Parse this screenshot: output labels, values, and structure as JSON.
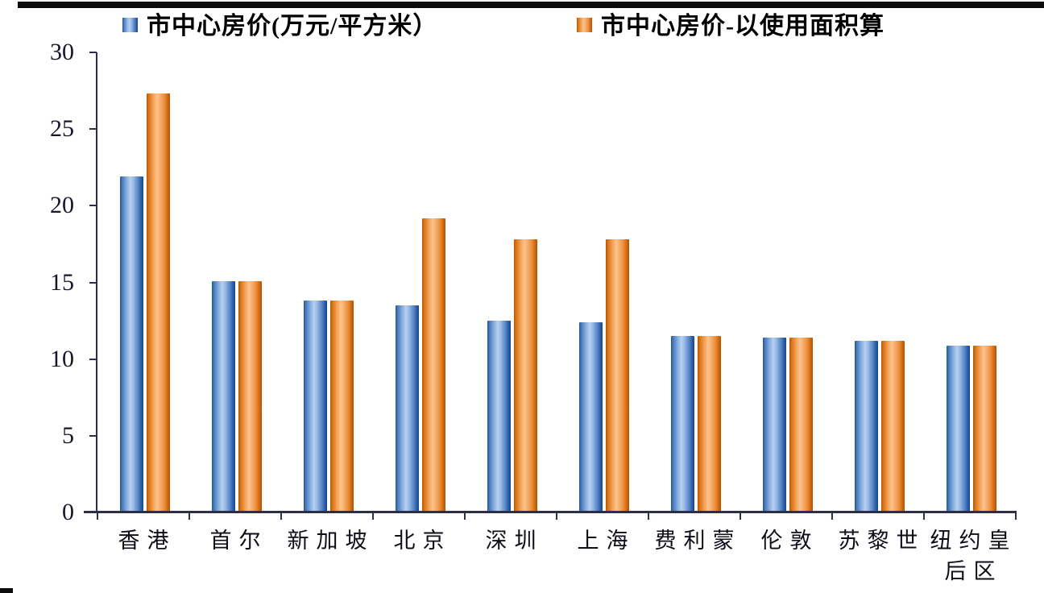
{
  "frame": {
    "top_bar_color": "#0b0b0b",
    "background": "#ffffff"
  },
  "legend": {
    "items": [
      {
        "label": "市中心房价(万元/平方米）",
        "swatch": "blue-gradient",
        "color": "#3a6db4"
      },
      {
        "label": "市中心房价-以使用面积算",
        "swatch": "orange-gradient",
        "color": "#e8872f"
      }
    ]
  },
  "chart_data": {
    "type": "bar",
    "title": "",
    "xlabel": "",
    "ylabel": "",
    "categories": [
      "香港",
      "首尔",
      "新加坡",
      "北京",
      "深圳",
      "上海",
      "费利蒙",
      "伦敦",
      "苏黎世",
      "纽约皇后区"
    ],
    "series": [
      {
        "name": "市中心房价(万元/平方米）",
        "color": "#3a6db4",
        "values": [
          21.9,
          15.1,
          13.8,
          13.5,
          12.5,
          12.4,
          11.5,
          11.4,
          11.2,
          10.9
        ]
      },
      {
        "name": "市中心房价-以使用面积算",
        "color": "#e8872f",
        "values": [
          27.3,
          15.1,
          13.8,
          19.2,
          17.8,
          17.8,
          11.5,
          11.4,
          11.2,
          10.9
        ]
      }
    ],
    "ylim": [
      0,
      30
    ],
    "yticks": [
      0,
      5,
      10,
      15,
      20,
      25,
      30
    ],
    "grid": false,
    "legend_position": "top",
    "axis_color": "#2e2e45",
    "text_color": "#16162a"
  }
}
